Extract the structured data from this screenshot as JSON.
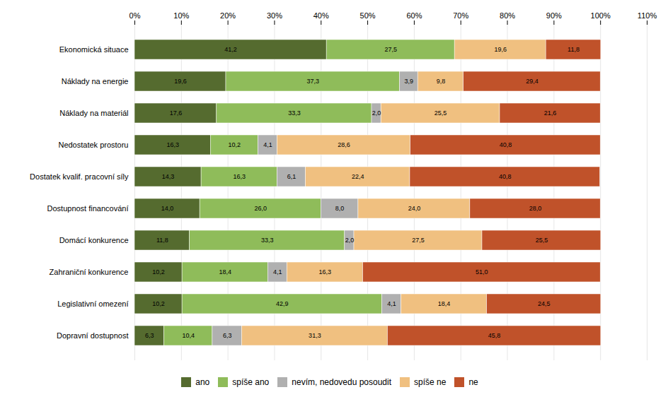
{
  "chart_data": {
    "type": "bar",
    "orientation": "horizontal",
    "stacked": true,
    "data_labels": true,
    "grid": true,
    "legend": "bottom",
    "categories": [
      "Ekonomická situace",
      "Náklady na energie",
      "Náklady na materiál",
      "Nedostatek prostoru",
      "Dostatek kvalif. pracovní síly",
      "Dostupnost financování",
      "Domácí konkurence",
      "Zahraniční konkurence",
      "Legislativní omezení",
      "Dopravní dostupnost"
    ],
    "series": [
      {
        "name": "ano",
        "color": "#556b2f",
        "values": [
          41.2,
          19.6,
          17.6,
          16.3,
          14.3,
          14.0,
          11.8,
          10.2,
          10.2,
          6.3
        ],
        "value_labels": [
          "41,2",
          "19,6",
          "17,6",
          "16,3",
          "14,3",
          "14,0",
          "11,8",
          "10,2",
          "10,2",
          "6,3"
        ]
      },
      {
        "name": "spíše ano",
        "color": "#8fbc5a",
        "values": [
          27.5,
          37.3,
          33.3,
          10.2,
          16.3,
          26.0,
          33.3,
          18.4,
          42.9,
          10.4
        ],
        "value_labels": [
          "27,5",
          "37,3",
          "33,3",
          "10,2",
          "16,3",
          "26,0",
          "33,3",
          "18,4",
          "42,9",
          "10,4"
        ]
      },
      {
        "name": "nevím, nedovedu posoudit",
        "color": "#b0b0b0",
        "values": [
          0.0,
          3.9,
          2.0,
          4.1,
          6.1,
          8.0,
          2.0,
          4.1,
          4.1,
          6.3
        ],
        "value_labels": [
          null,
          "3,9",
          "2,0",
          "4,1",
          "6,1",
          "8,0",
          "2,0",
          "4,1",
          "4,1",
          "6,3"
        ]
      },
      {
        "name": "spíše ne",
        "color": "#f0c080",
        "values": [
          19.6,
          9.8,
          25.5,
          28.6,
          22.4,
          24.0,
          27.5,
          16.3,
          18.4,
          31.3
        ],
        "value_labels": [
          "19,6",
          "9,8",
          "25,5",
          "28,6",
          "22,4",
          "24,0",
          "27,5",
          "16,3",
          "18,4",
          "31,3"
        ]
      },
      {
        "name": "ne",
        "color": "#c0522a",
        "values": [
          11.8,
          29.4,
          21.6,
          40.8,
          40.8,
          28.0,
          25.5,
          51.0,
          24.5,
          45.8
        ],
        "value_labels": [
          "11,8",
          "29,4",
          "21,6",
          "40,8",
          "40,8",
          "28,0",
          "25,5",
          "51,0",
          "24,5",
          "45,8"
        ]
      }
    ],
    "xlim": [
      0,
      110
    ],
    "xticks": [
      {
        "value": 0,
        "label": "0%"
      },
      {
        "value": 10,
        "label": "10%"
      },
      {
        "value": 20,
        "label": "20%"
      },
      {
        "value": 30,
        "label": "30%"
      },
      {
        "value": 40,
        "label": "40%"
      },
      {
        "value": 50,
        "label": "50%"
      },
      {
        "value": 60,
        "label": "60%"
      },
      {
        "value": 70,
        "label": "70%"
      },
      {
        "value": 80,
        "label": "80%"
      },
      {
        "value": 90,
        "label": "90%"
      },
      {
        "value": 100,
        "label": "100%"
      },
      {
        "value": 110,
        "label": "110%"
      }
    ]
  }
}
